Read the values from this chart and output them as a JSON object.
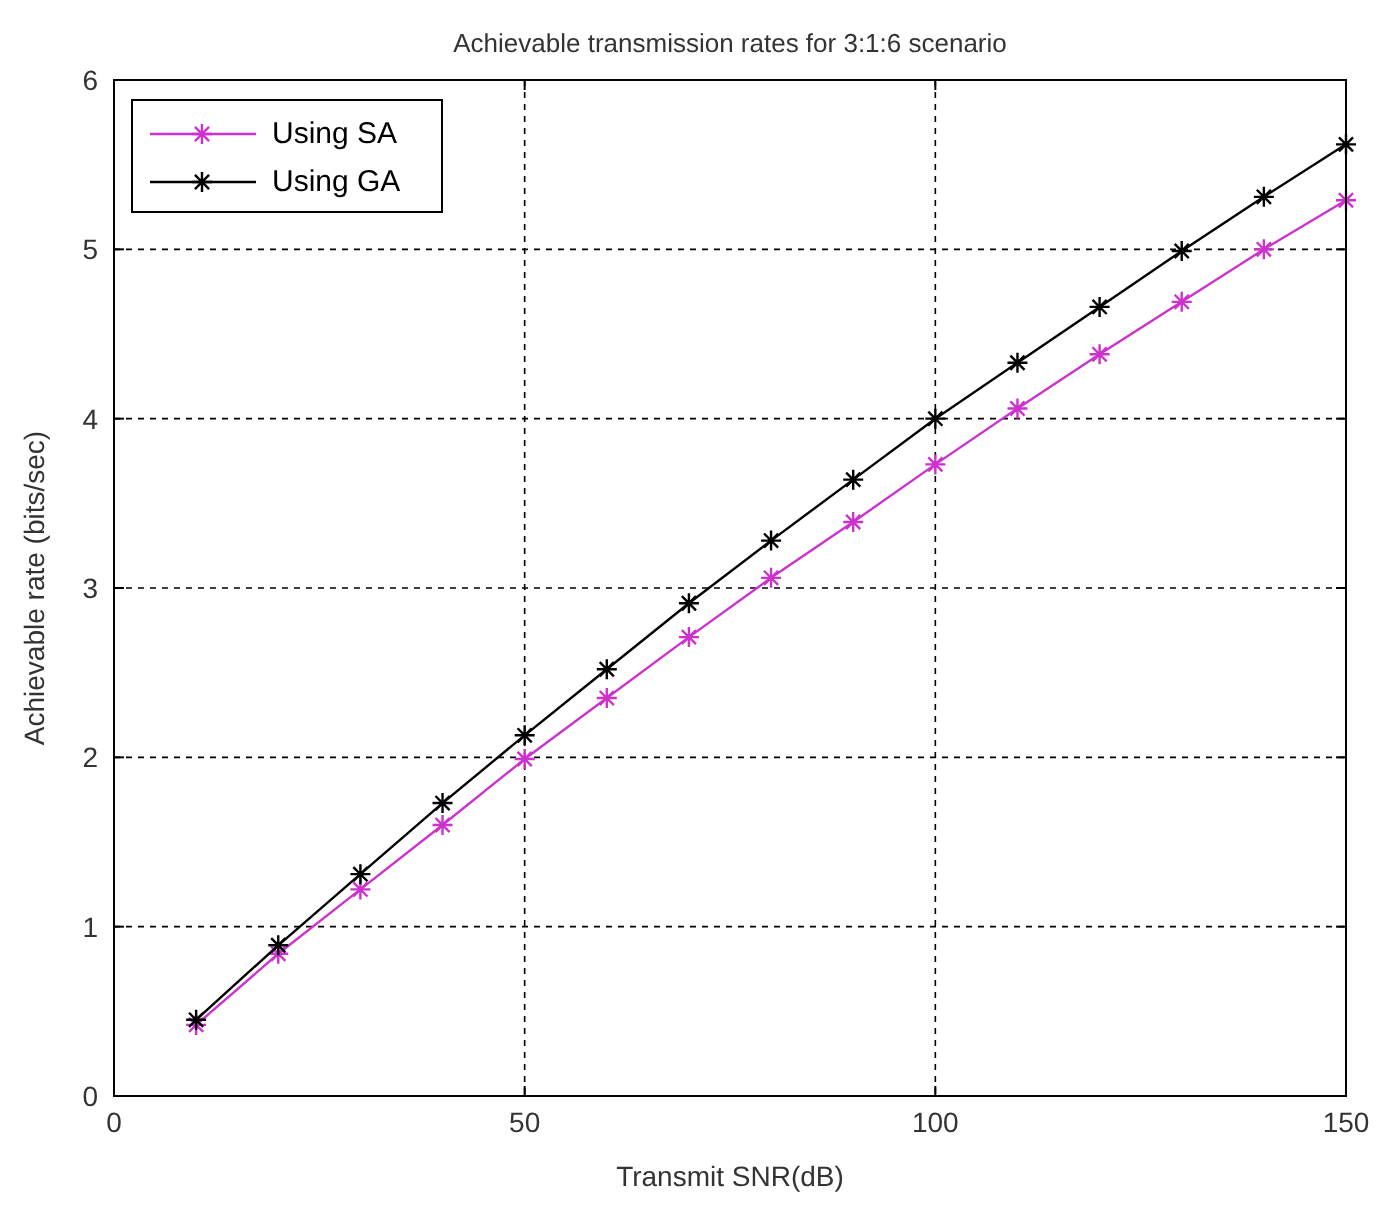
{
  "chart_data": {
    "type": "line",
    "title": "Achievable transmission rates for 3:1:6 scenario",
    "xlabel": "Transmit SNR(dB)",
    "ylabel": "Achievable rate (bits/sec)",
    "x": [
      10,
      20,
      30,
      40,
      50,
      60,
      70,
      80,
      90,
      100,
      110,
      120,
      130,
      140,
      150
    ],
    "series": [
      {
        "name": "Using SA",
        "color": "#cc33cc",
        "values": [
          0.42,
          0.84,
          1.22,
          1.6,
          1.99,
          2.35,
          2.71,
          3.06,
          3.39,
          3.73,
          4.06,
          4.38,
          4.69,
          5.0,
          5.29
        ]
      },
      {
        "name": "Using GA",
        "color": "#000000",
        "values": [
          0.45,
          0.89,
          1.31,
          1.73,
          2.13,
          2.52,
          2.91,
          3.28,
          3.64,
          4.0,
          4.33,
          4.66,
          4.99,
          5.31,
          5.62
        ]
      }
    ],
    "xlim": [
      0,
      150
    ],
    "xticks": [
      0,
      50,
      100,
      150
    ],
    "ylim": [
      0,
      6
    ],
    "yticks": [
      0,
      1,
      2,
      3,
      4,
      5,
      6
    ],
    "grid": true,
    "legend": "top left",
    "marker": "cross",
    "line_style": "solid"
  }
}
